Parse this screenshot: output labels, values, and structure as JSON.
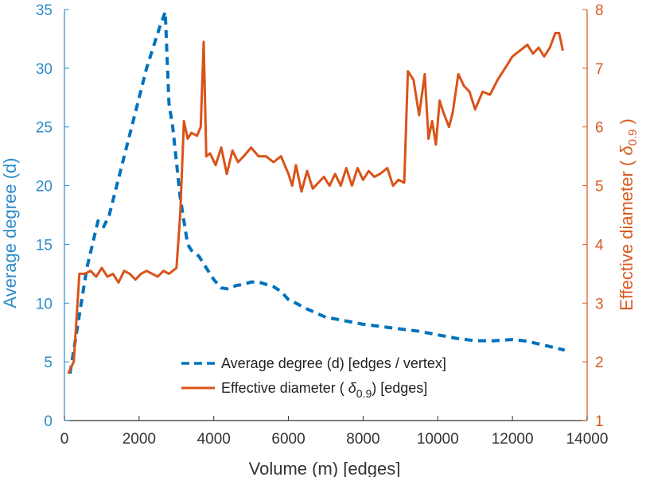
{
  "chart_data": {
    "type": "line",
    "xlabel": "Volume (m) [edges]",
    "ylabel_left": "Average degree (d)",
    "ylabel_right_prefix": "Effective diameter (",
    "ylabel_right_symbol": "δ",
    "ylabel_right_subscript": "0.9",
    "ylabel_right_suffix": ")",
    "xlim": [
      0,
      14000
    ],
    "ylim_left": [
      0,
      35
    ],
    "ylim_right": [
      1,
      8
    ],
    "xticks": [
      0,
      2000,
      4000,
      6000,
      8000,
      10000,
      12000,
      14000
    ],
    "yticks_left": [
      0,
      5,
      10,
      15,
      20,
      25,
      30,
      35
    ],
    "yticks_right": [
      1,
      2,
      3,
      4,
      5,
      6,
      7,
      8
    ],
    "legend_position": "bottom-right",
    "colors": {
      "left_axis": "#2e8bc9",
      "right_axis": "#d95a1f",
      "axis_dark": "#333333",
      "avg_degree": "#0072bd",
      "eff_diameter": "#d95319"
    },
    "series": [
      {
        "name": "Average degree (d) [edges / vertex]",
        "axis": "left",
        "style": "dashed",
        "x": [
          150,
          300,
          450,
          600,
          750,
          900,
          1050,
          1200,
          1400,
          1600,
          1800,
          2000,
          2200,
          2400,
          2550,
          2700,
          2800,
          2900,
          3000,
          3100,
          3200,
          3300,
          3400,
          3600,
          3800,
          4000,
          4200,
          4400,
          4600,
          4800,
          5000,
          5200,
          5400,
          5600,
          5800,
          6000,
          6200,
          6500,
          7000,
          7500,
          8000,
          8500,
          9000,
          9500,
          10000,
          10500,
          11000,
          11500,
          12000,
          12300,
          12600,
          13000,
          13400
        ],
        "y": [
          4,
          7,
          10,
          13,
          15,
          17,
          16.5,
          17.5,
          20,
          22.5,
          25,
          27.5,
          30,
          32,
          33.5,
          34.8,
          27,
          25,
          22,
          19,
          17,
          15,
          14.5,
          14,
          13,
          12,
          11.3,
          11.2,
          11.5,
          11.6,
          11.8,
          11.8,
          11.6,
          11.4,
          11,
          10.3,
          10,
          9.5,
          8.8,
          8.5,
          8.2,
          8.0,
          7.8,
          7.6,
          7.3,
          7.0,
          6.8,
          6.8,
          6.9,
          6.8,
          6.6,
          6.3,
          6.0
        ]
      },
      {
        "name": "Effective diameter ( δ0.9 ) [edges]",
        "axis": "right",
        "style": "solid",
        "x": [
          100,
          250,
          400,
          550,
          700,
          850,
          1000,
          1150,
          1300,
          1450,
          1600,
          1750,
          1900,
          2050,
          2200,
          2350,
          2500,
          2650,
          2800,
          3000,
          3100,
          3200,
          3300,
          3400,
          3550,
          3650,
          3730,
          3800,
          3900,
          4050,
          4200,
          4350,
          4500,
          4650,
          4800,
          5000,
          5200,
          5400,
          5600,
          5800,
          6000,
          6100,
          6200,
          6350,
          6500,
          6650,
          6800,
          6950,
          7100,
          7250,
          7400,
          7550,
          7700,
          7850,
          8000,
          8150,
          8300,
          8450,
          8650,
          8800,
          8950,
          9100,
          9200,
          9350,
          9500,
          9650,
          9750,
          9850,
          9950,
          10050,
          10150,
          10300,
          10400,
          10550,
          10700,
          10850,
          11000,
          11200,
          11400,
          11600,
          11800,
          12000,
          12200,
          12400,
          12550,
          12700,
          12850,
          13000,
          13150,
          13250,
          13350
        ],
        "y": [
          1.8,
          2.0,
          3.5,
          3.5,
          3.55,
          3.45,
          3.6,
          3.45,
          3.5,
          3.35,
          3.55,
          3.5,
          3.4,
          3.5,
          3.55,
          3.5,
          3.45,
          3.55,
          3.5,
          3.6,
          4.5,
          6.1,
          5.8,
          5.9,
          5.85,
          6.0,
          7.45,
          5.5,
          5.55,
          5.35,
          5.65,
          5.2,
          5.6,
          5.4,
          5.5,
          5.65,
          5.5,
          5.5,
          5.4,
          5.5,
          5.2,
          5.0,
          5.35,
          4.9,
          5.25,
          4.95,
          5.05,
          5.15,
          5.0,
          5.2,
          5.0,
          5.3,
          5.0,
          5.3,
          5.1,
          5.25,
          5.15,
          5.2,
          5.3,
          5.0,
          5.1,
          5.05,
          6.95,
          6.8,
          6.2,
          6.9,
          5.8,
          6.1,
          5.7,
          6.45,
          6.25,
          6.0,
          6.25,
          6.9,
          6.7,
          6.6,
          6.3,
          6.6,
          6.55,
          6.8,
          7.0,
          7.2,
          7.3,
          7.4,
          7.25,
          7.35,
          7.2,
          7.35,
          7.6,
          7.6,
          7.3
        ]
      }
    ]
  },
  "legend": {
    "avg_label": "Average degree (d) [edges / vertex]",
    "eff_prefix": "Effective diameter (",
    "eff_symbol": "δ",
    "eff_subscript": "0.9",
    "eff_suffix": ") [edges]"
  }
}
